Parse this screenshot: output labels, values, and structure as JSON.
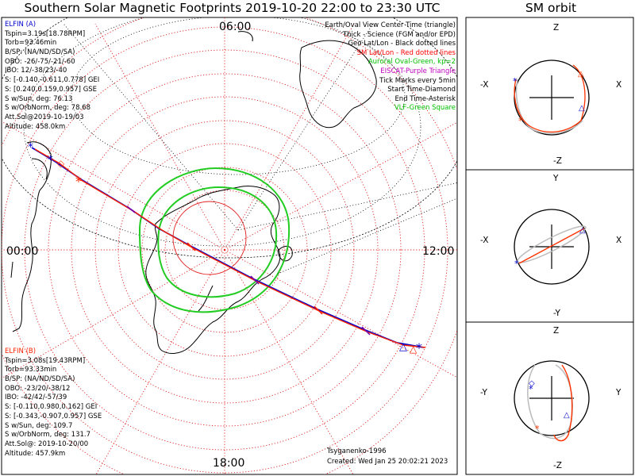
{
  "header": {
    "title": "Southern Solar Magnetic Footprints 2019-10-20 22:00 to 23:30 UTC",
    "sm_orbit_title": "SM orbit"
  },
  "map": {
    "time_labels": {
      "top": "06:00",
      "left": "00:00",
      "right": "12:00",
      "bottom": "18:00"
    }
  },
  "legend": [
    {
      "text": "Earth/Oval View Center Time (triangle)",
      "color": "#000000"
    },
    {
      "text": "Thick - Science (FGM and/or EPD)",
      "color": "#000000"
    },
    {
      "text": "Geo Lat/Lon - Black dotted lines",
      "color": "#000000"
    },
    {
      "text": "SM Lat/Lon - Red dotted lines",
      "color": "#ff0000"
    },
    {
      "text": "Auroral Oval-Green, kp=2",
      "color": "#00c000"
    },
    {
      "text": "EISCAT-Purple Triangle",
      "color": "#c000c0"
    },
    {
      "text": "Tick Marks every 5min",
      "color": "#000000"
    },
    {
      "text": "Start Time-Diamond",
      "color": "#000000"
    },
    {
      "text": "End Time-Asterisk",
      "color": "#000000"
    },
    {
      "text": "VLF-Green Square",
      "color": "#00c000"
    }
  ],
  "elfin_a": {
    "name": "ELFIN (A)",
    "color": "#0000cc",
    "lines": [
      "Tspin=3.19s[18.78RPM]",
      "Torb=93.46min",
      "B/SP: (NA/ND/SD/SA)",
      "OBO: -26/-75/-21/-60",
      "IBO: 12/-38/23/-40",
      "S: [-0.140,-0.611,0.778] GEI",
      "S: [0.240,0.159,0.957] GSE",
      "S w/Sun, deg: 76.13",
      "S w/OrbNorm, deg: 78.68",
      "Att.Sol@2019-10-19/03",
      "Altitude: 458.0km"
    ]
  },
  "elfin_b": {
    "name": "ELFIN (B)",
    "color": "#ff2200",
    "lines": [
      "Tspin=3.08s[19.43RPM]",
      "Torb=93.33min",
      "B/SP: (NA/ND/SD/SA)",
      "OBO: -23/20/-38/12",
      "IBO: -42/42/-57/39",
      "S: [-0.110,0.980,0.162] GEI",
      "S: [-0.343,-0.907,0.957] GSE",
      "S w/Sun, deg: 109.7",
      "S w/OrbNorm, deg: 131.7",
      "Att.Sol@: 2019-10-20/00",
      "Altitude: 457.9km"
    ]
  },
  "credits": {
    "author": "Tsyganenko-1996",
    "created": "Created: Wed Jan 25 20:02:21 2023"
  },
  "sm_panels": [
    {
      "top": "Z",
      "bottom": "-Z",
      "left": "-X",
      "right": "X"
    },
    {
      "top": "Y",
      "bottom": "-Y",
      "left": "-X",
      "right": "X"
    },
    {
      "top": "Z",
      "bottom": "-Z",
      "left": "-Y",
      "right": "Y"
    }
  ]
}
